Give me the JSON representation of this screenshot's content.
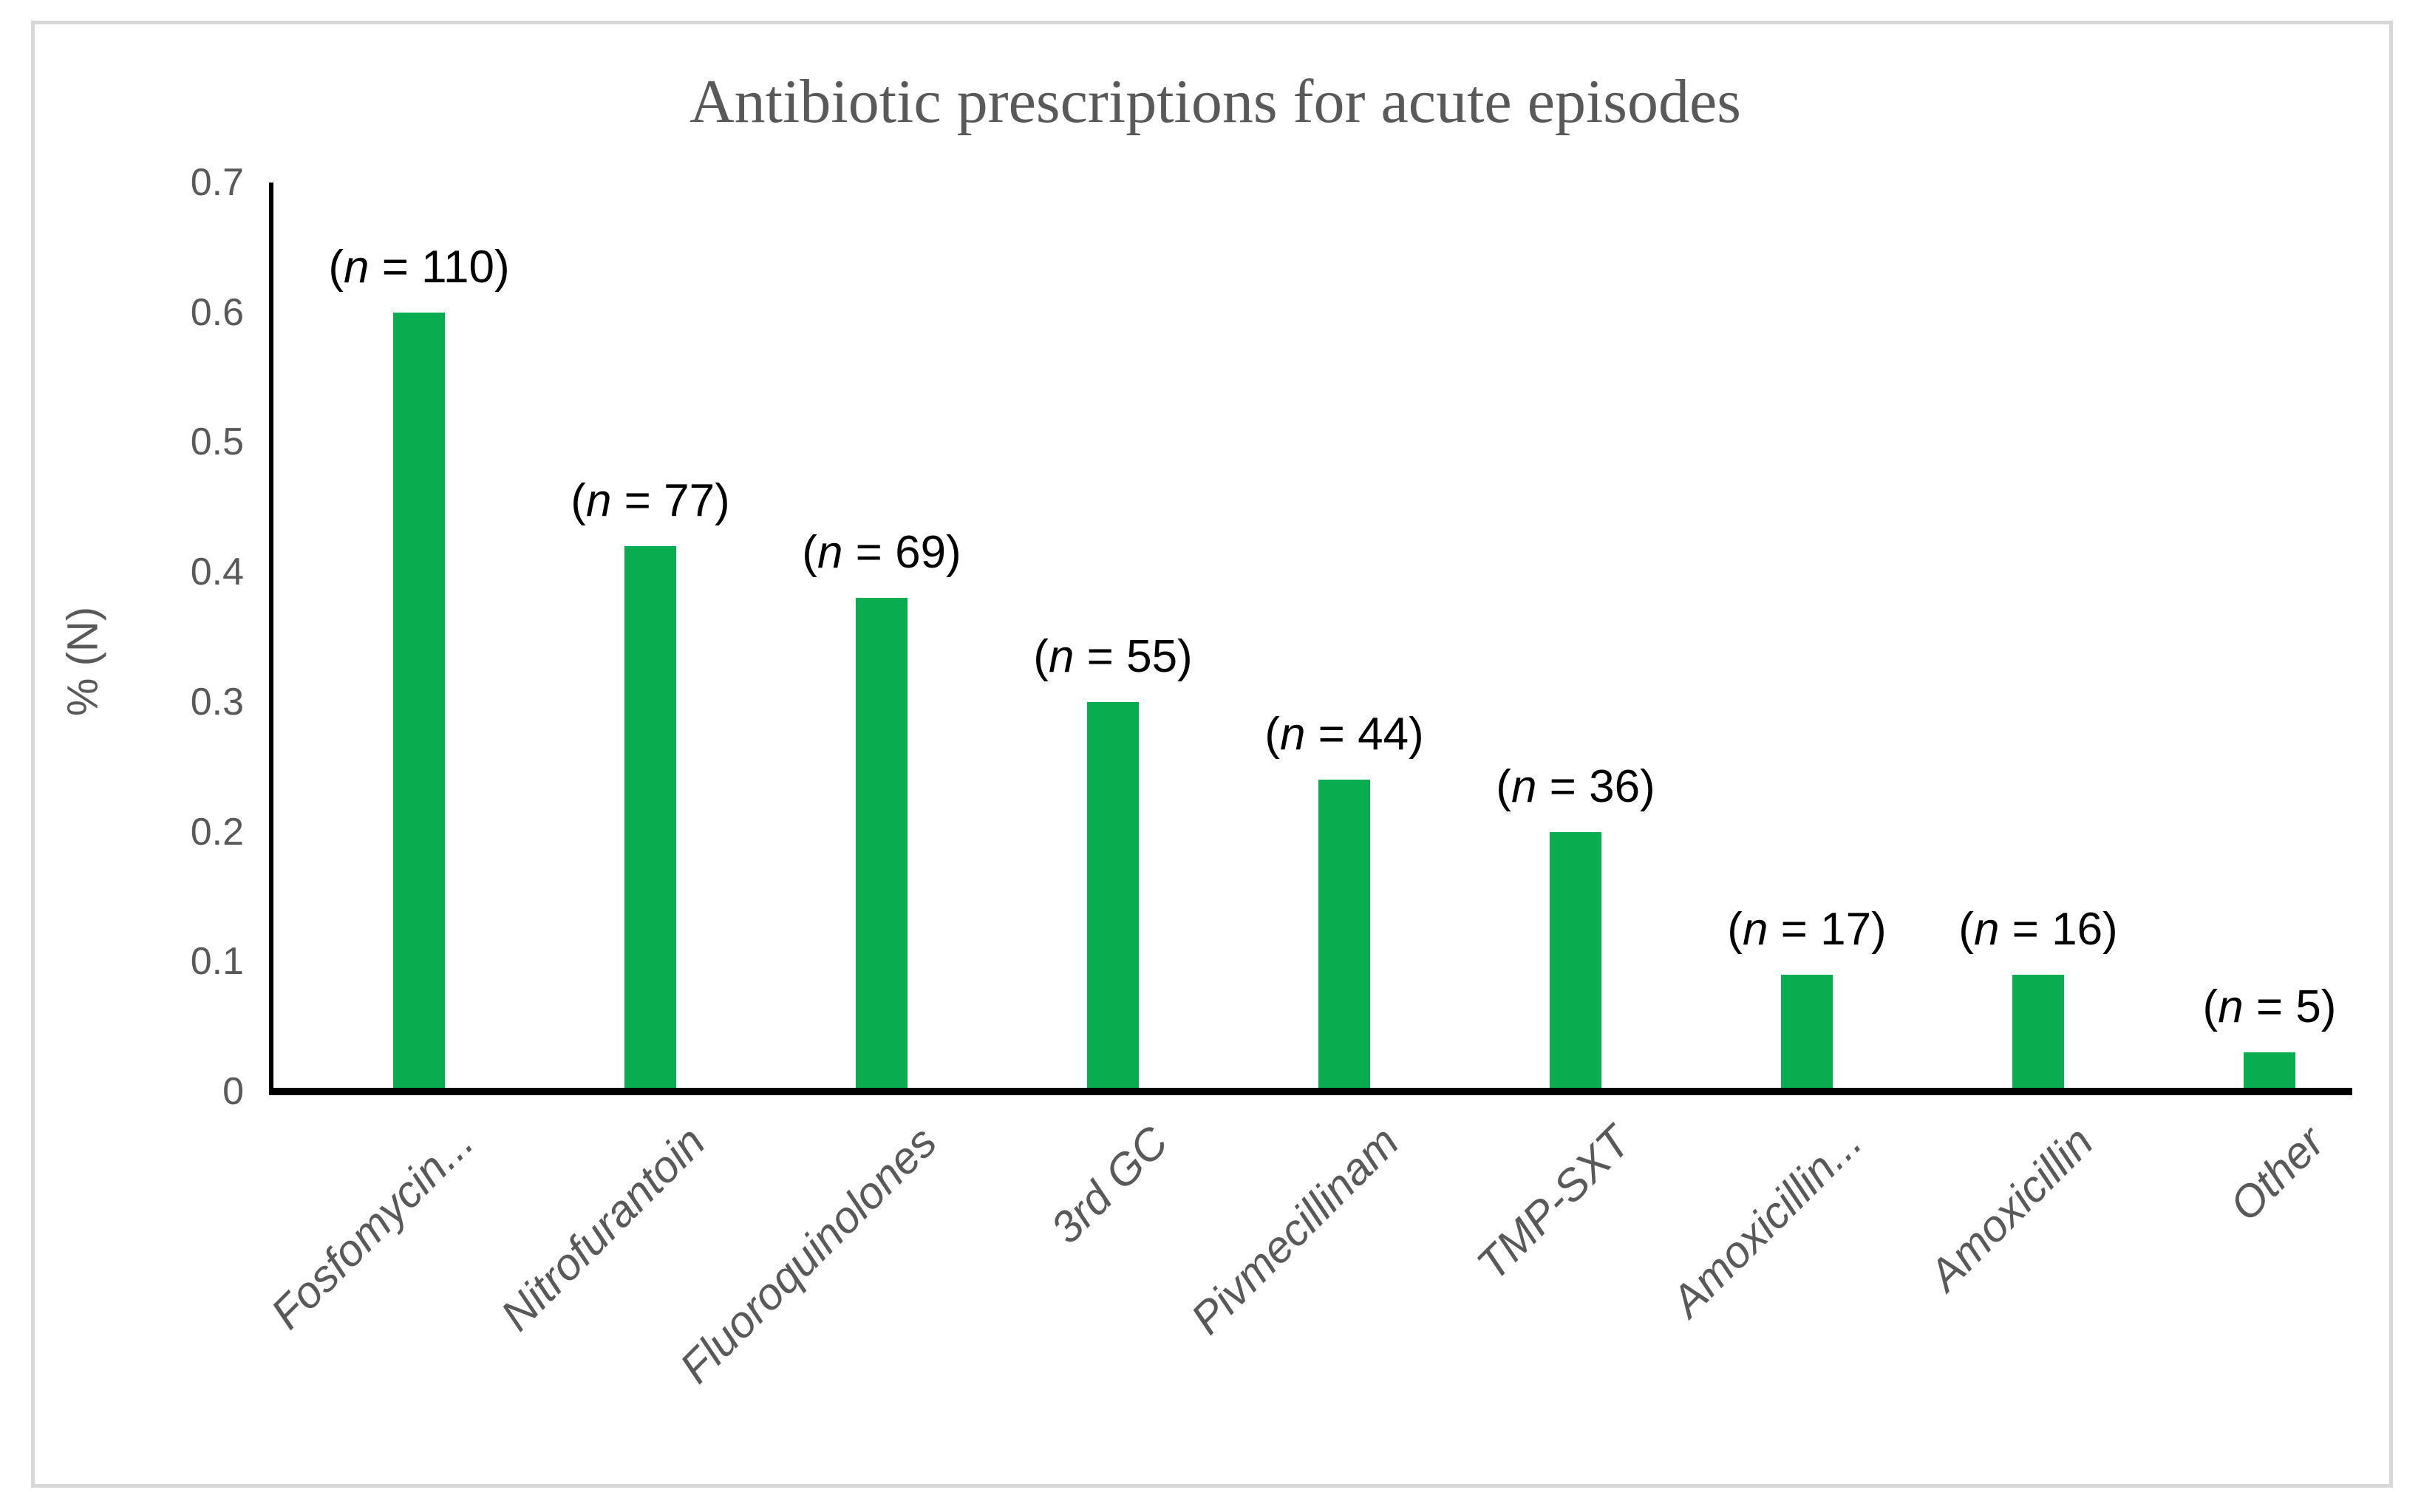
{
  "chart_data": {
    "type": "bar",
    "title": "Antibiotic prescriptions for acute episodes",
    "xlabel": "",
    "ylabel": "% (N)",
    "categories": [
      "Fosfomycin...",
      "Nitrofurantoin",
      "Fluoroquinolones",
      "3rd GC",
      "Pivmecillinam",
      "TMP-SXT",
      "Amoxicillin...",
      "Amoxicillin",
      "Other"
    ],
    "values": [
      0.6,
      0.42,
      0.38,
      0.3,
      0.24,
      0.2,
      0.09,
      0.09,
      0.03
    ],
    "counts": [
      110,
      77,
      69,
      55,
      44,
      36,
      17,
      16,
      5
    ],
    "data_labels": [
      "(n = 110)",
      "(n = 77)",
      "(n = 69)",
      "(n = 55)",
      "(n = 44)",
      "(n = 36)",
      "(n = 17)",
      "(n = 16)",
      "(n = 5)"
    ],
    "label_format": {
      "open": "(",
      "var": "n",
      "eq": " = ",
      "close": ")"
    },
    "y_ticks": [
      "0",
      "0.1",
      "0.2",
      "0.3",
      "0.4",
      "0.5",
      "0.6",
      "0.7"
    ],
    "ylim": [
      0,
      0.7
    ],
    "grid": false,
    "legend": false,
    "bar_color": "#0AAC50",
    "text_color": "#595959",
    "data_label_color": "#000000",
    "axis_color": "#000000",
    "frame_color": "#D7D7D7"
  }
}
